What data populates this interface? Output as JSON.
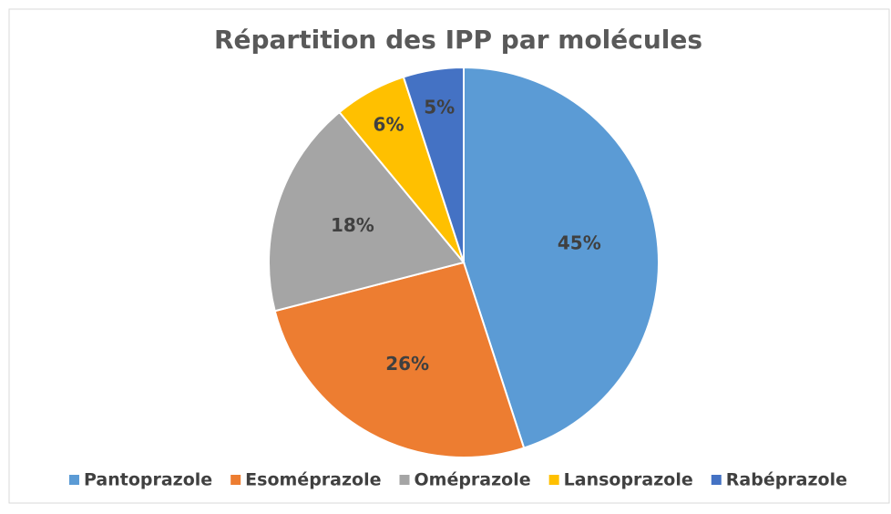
{
  "chart_data": {
    "type": "pie",
    "title": "Répartition des IPP par molécules",
    "categories": [
      "Pantoprazole",
      "Esoméprazole",
      "Oméprazole",
      "Lansoprazole",
      "Rabéprazole"
    ],
    "values": [
      45,
      26,
      18,
      6,
      5
    ],
    "value_labels": [
      "45%",
      "26%",
      "18%",
      "6%",
      "5%"
    ],
    "colors": [
      "#5b9bd5",
      "#ed7d31",
      "#a5a5a5",
      "#ffc000",
      "#4472c4"
    ],
    "legend": "bottom"
  }
}
